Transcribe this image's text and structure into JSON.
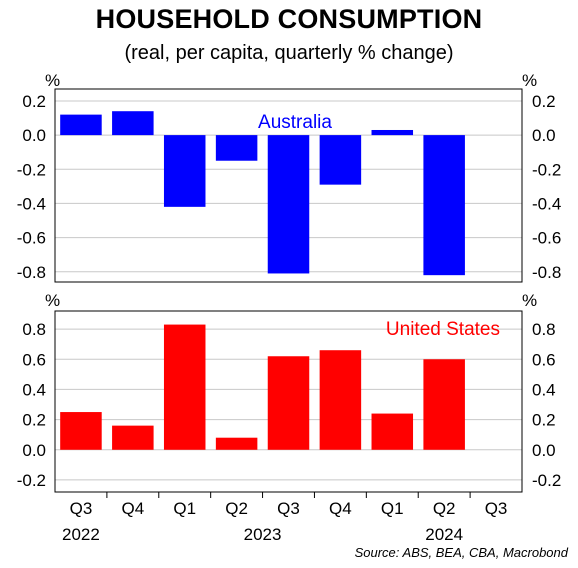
{
  "title": "HOUSEHOLD CONSUMPTION",
  "subtitle": "(real, per capita, quarterly % change)",
  "source": "Source: ABS, BEA, CBA, Macrobond",
  "x_axis": {
    "quarters": [
      "Q3",
      "Q4",
      "Q1",
      "Q2",
      "Q3",
      "Q4",
      "Q1",
      "Q2",
      "Q3"
    ],
    "years": [
      {
        "label": "2022",
        "quarter_index": 0
      },
      {
        "label": "2023",
        "quarter_index": 3.5
      },
      {
        "label": "2024",
        "quarter_index": 7
      }
    ]
  },
  "chart_data": [
    {
      "type": "bar",
      "unit_label": "%",
      "panel_label": "Australia",
      "color": "#0000ff",
      "categories": [
        "Q3 2022",
        "Q4 2022",
        "Q1 2023",
        "Q2 2023",
        "Q3 2023",
        "Q4 2023",
        "Q1 2024",
        "Q2 2024",
        "Q3 2024"
      ],
      "values": [
        0.12,
        0.14,
        -0.42,
        -0.15,
        -0.81,
        -0.29,
        0.03,
        -0.82,
        null
      ],
      "ylim": [
        -0.86,
        0.27
      ],
      "yticks": [
        0.2,
        0.0,
        -0.2,
        -0.4,
        -0.6,
        -0.8
      ],
      "yticklabels": [
        "0.2",
        "0.0",
        "-0.2",
        "-0.4",
        "-0.6",
        "-0.8"
      ],
      "grid": true,
      "legend": "top-center"
    },
    {
      "type": "bar",
      "unit_label": "%",
      "panel_label": "United States",
      "color": "#ff0000",
      "categories": [
        "Q3 2022",
        "Q4 2022",
        "Q1 2023",
        "Q2 2023",
        "Q3 2023",
        "Q4 2023",
        "Q1 2024",
        "Q2 2024",
        "Q3 2024"
      ],
      "values": [
        0.25,
        0.16,
        0.83,
        0.08,
        0.62,
        0.66,
        0.24,
        0.6,
        null
      ],
      "ylim": [
        -0.28,
        0.92
      ],
      "yticks": [
        0.8,
        0.6,
        0.4,
        0.2,
        0.0,
        -0.2
      ],
      "yticklabels": [
        "0.8",
        "0.6",
        "0.4",
        "0.2",
        "0.0",
        "-0.2"
      ],
      "grid": true,
      "legend": "top-right"
    }
  ]
}
